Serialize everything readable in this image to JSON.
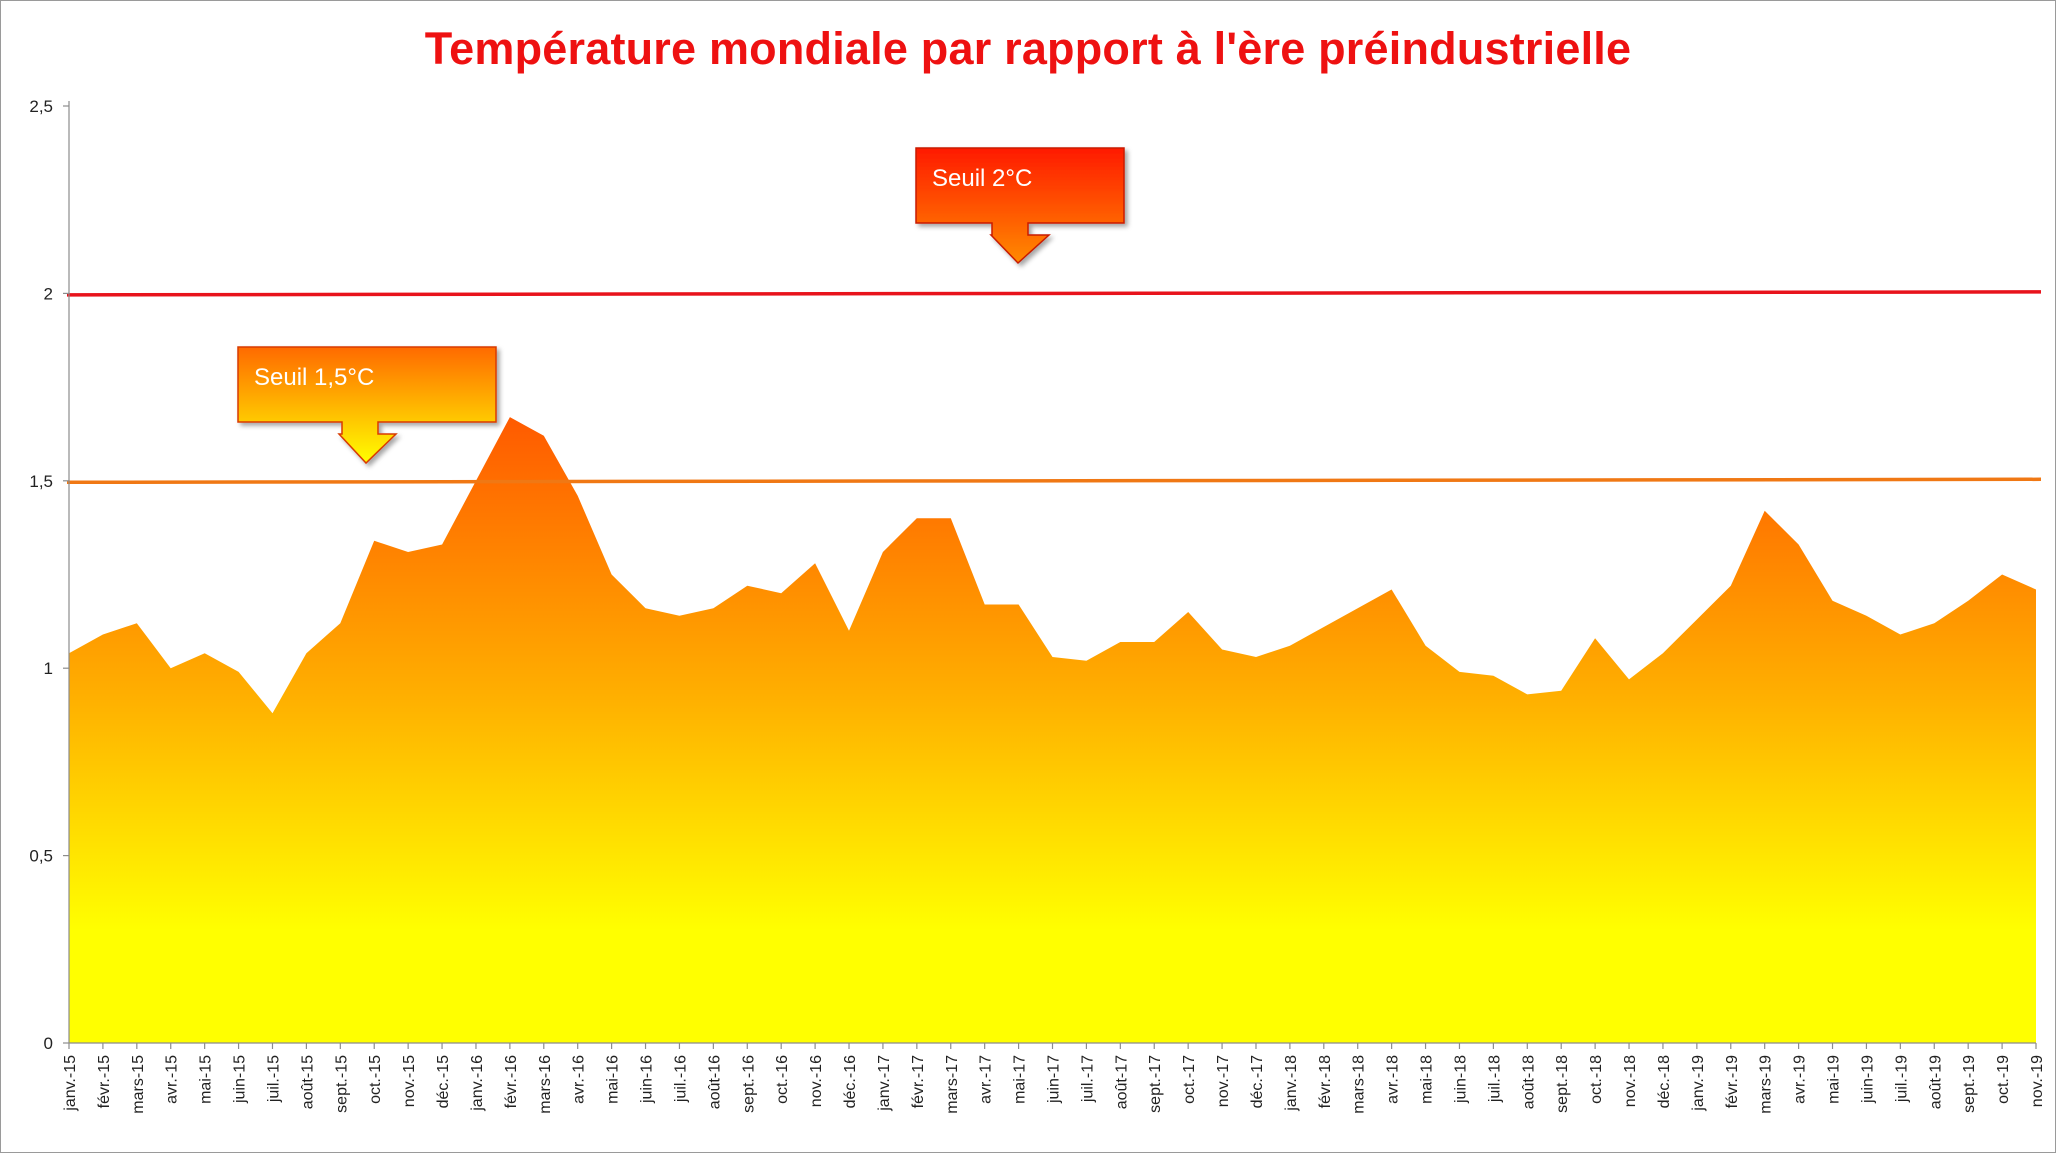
{
  "chart_data": {
    "type": "area",
    "title": "Température mondiale par rapport à l'ère préindustrielle",
    "xlabel": "",
    "ylabel": "",
    "ylim": [
      0,
      2.5
    ],
    "y_ticks": [
      "0",
      "0,5",
      "1",
      "1,5",
      "2",
      "2,5"
    ],
    "grid": false,
    "categories": [
      "janv.-15",
      "févr.-15",
      "mars-15",
      "avr.-15",
      "mai-15",
      "juin-15",
      "juil.-15",
      "août-15",
      "sept.-15",
      "oct.-15",
      "nov.-15",
      "déc.-15",
      "janv.-16",
      "févr.-16",
      "mars-16",
      "avr.-16",
      "mai-16",
      "juin-16",
      "juil.-16",
      "août-16",
      "sept.-16",
      "oct.-16",
      "nov.-16",
      "déc.-16",
      "janv.-17",
      "févr.-17",
      "mars-17",
      "avr.-17",
      "mai-17",
      "juin-17",
      "juil.-17",
      "août-17",
      "sept.-17",
      "oct.-17",
      "nov.-17",
      "déc.-17",
      "janv.-18",
      "févr.-18",
      "mars-18",
      "avr.-18",
      "mai-18",
      "juin-18",
      "juil.-18",
      "août-18",
      "sept.-18",
      "oct.-18",
      "nov.-18",
      "déc.-18",
      "janv.-19",
      "févr.-19",
      "mars-19",
      "avr.-19",
      "mai-19",
      "juin-19",
      "juil.-19",
      "août-19",
      "sept.-19",
      "oct.-19",
      "nov.-19"
    ],
    "values": [
      1.04,
      1.09,
      1.12,
      1.0,
      1.04,
      0.99,
      0.88,
      1.04,
      1.12,
      1.34,
      1.31,
      1.33,
      1.5,
      1.67,
      1.62,
      1.46,
      1.25,
      1.16,
      1.14,
      1.16,
      1.22,
      1.2,
      1.28,
      1.1,
      1.31,
      1.4,
      1.4,
      1.17,
      1.17,
      1.03,
      1.02,
      1.07,
      1.07,
      1.15,
      1.05,
      1.03,
      1.06,
      1.11,
      1.16,
      1.21,
      1.06,
      0.99,
      0.98,
      0.93,
      0.94,
      1.08,
      0.97,
      1.04,
      1.13,
      1.22,
      1.42,
      1.33,
      1.18,
      1.14,
      1.09,
      1.12,
      1.18,
      1.25,
      1.21
    ],
    "thresholds": [
      {
        "label": "Seuil 2°C",
        "value": 2.0,
        "color": "#e8131c"
      },
      {
        "label": "Seuil 1,5°C",
        "value": 1.5,
        "color": "#f07814"
      }
    ],
    "colors": {
      "area_top": "#ff5a00",
      "area_mid": "#ffb000",
      "area_bottom": "#ffff00",
      "callout_2_top": "#ff1a00",
      "callout_2_bottom": "#ff8a00",
      "callout_15_top": "#ff6a00",
      "callout_15_bottom": "#ffff00"
    }
  }
}
